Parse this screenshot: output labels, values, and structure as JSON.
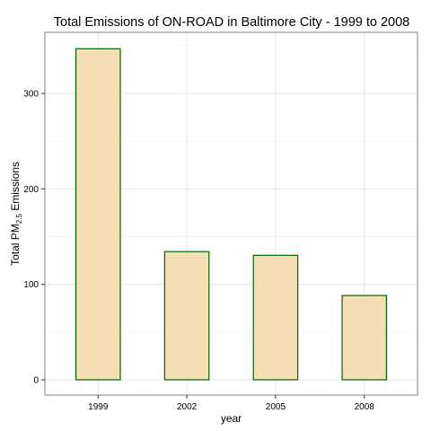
{
  "chart_data": {
    "type": "bar",
    "title": "Total Emissions of ON-ROAD in Baltimore City  - 1999 to 2008",
    "xlabel": "year",
    "ylabel": {
      "prefix": "Total PM",
      "subscript": "2.5",
      "suffix": " Emissions"
    },
    "categories": [
      "1999",
      "2002",
      "2005",
      "2008"
    ],
    "values": [
      346.8,
      134.3,
      130.4,
      88.3
    ],
    "ylim": [
      -16,
      364
    ],
    "yticks": [
      0,
      100,
      200,
      300
    ],
    "grid": true,
    "legend": "none",
    "colors": {
      "bar_fill": "#f5deb3",
      "bar_stroke": "#006400",
      "grid_major": "#e5e5e5",
      "grid_minor": "#f2f2f2",
      "panel_border": "#7f7f7f"
    }
  }
}
